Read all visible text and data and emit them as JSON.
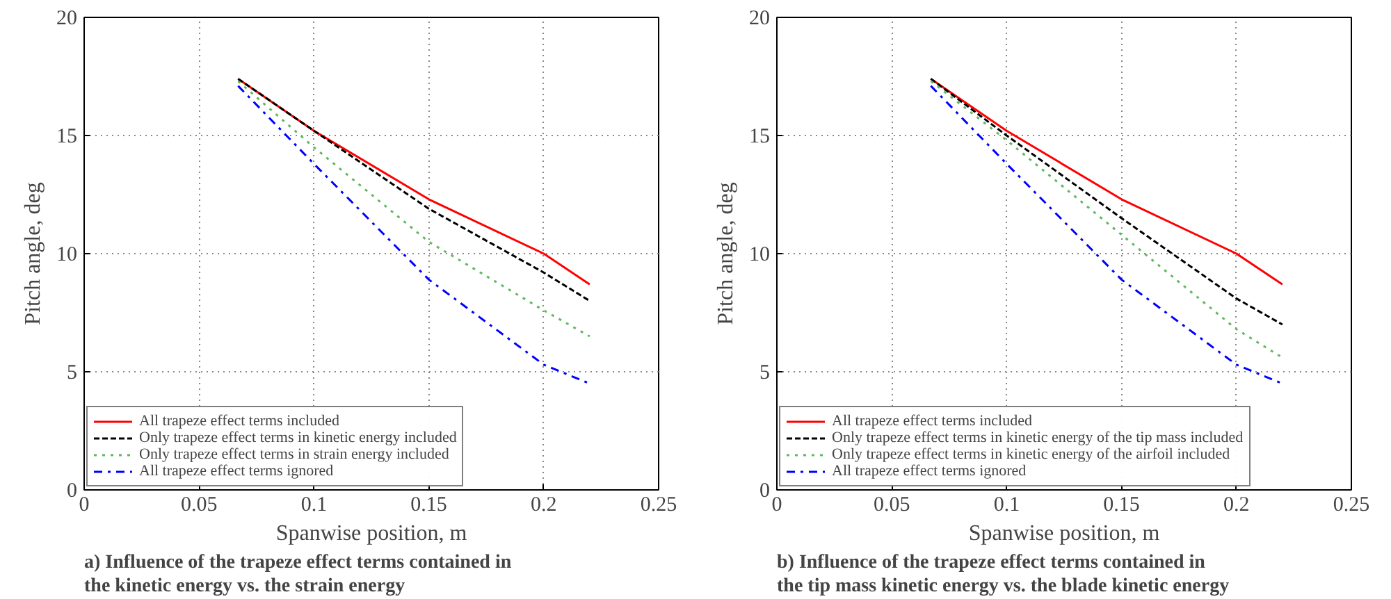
{
  "chart_data": [
    {
      "type": "line",
      "xlabel": "Spanwise position, m",
      "ylabel": "Pitch angle, deg",
      "xlim": [
        0,
        0.25
      ],
      "ylim": [
        0,
        20
      ],
      "xticks": [
        0,
        0.05,
        0.1,
        0.15,
        0.2,
        0.25
      ],
      "yticks": [
        0,
        5,
        10,
        15,
        20
      ],
      "grid": true,
      "legend": "bottom left",
      "x": [
        0.067,
        0.1,
        0.15,
        0.2,
        0.22
      ],
      "series": [
        {
          "name": "All trapeze effect terms included",
          "color": "#ff0000",
          "line_style": "solid",
          "values": [
            17.4,
            15.2,
            12.3,
            10.0,
            8.7
          ]
        },
        {
          "name": "Only trapeze effect terms in kinetic energy included",
          "color": "#000000",
          "line_style": "dashed",
          "values": [
            17.4,
            15.2,
            11.9,
            9.2,
            8.0
          ]
        },
        {
          "name": "Only trapeze effect terms in strain energy included",
          "color": "#5fb85f",
          "line_style": "dotted",
          "values": [
            17.3,
            14.5,
            10.5,
            7.6,
            6.5
          ]
        },
        {
          "name": "All trapeze effect terms ignored",
          "color": "#0000ff",
          "line_style": "dashdot",
          "values": [
            17.1,
            13.8,
            8.9,
            5.3,
            4.5
          ]
        }
      ],
      "annotations": [
        "a) Influence of the trapeze effect terms contained in the kinetic energy vs. the strain energy"
      ]
    },
    {
      "type": "line",
      "xlabel": "Spanwise position, m",
      "ylabel": "Pitch angle, deg",
      "xlim": [
        0,
        0.25
      ],
      "ylim": [
        0,
        20
      ],
      "xticks": [
        0,
        0.05,
        0.1,
        0.15,
        0.2,
        0.25
      ],
      "yticks": [
        0,
        5,
        10,
        15,
        20
      ],
      "grid": true,
      "legend": "bottom left",
      "x": [
        0.067,
        0.1,
        0.15,
        0.2,
        0.22
      ],
      "series": [
        {
          "name": "All trapeze effect terms included",
          "color": "#ff0000",
          "line_style": "solid",
          "values": [
            17.4,
            15.2,
            12.3,
            10.0,
            8.7
          ]
        },
        {
          "name": "Only trapeze effect terms in kinetic energy of the tip mass included",
          "color": "#000000",
          "line_style": "dashed",
          "values": [
            17.4,
            15.0,
            11.5,
            8.1,
            7.0
          ]
        },
        {
          "name": "Only trapeze effect terms in kinetic energy of the airfoil included",
          "color": "#5fb85f",
          "line_style": "dotted",
          "values": [
            17.3,
            14.8,
            10.8,
            6.8,
            5.6
          ]
        },
        {
          "name": "All trapeze effect terms ignored",
          "color": "#0000ff",
          "line_style": "dashdot",
          "values": [
            17.1,
            13.8,
            8.9,
            5.3,
            4.5
          ]
        }
      ],
      "annotations": [
        "b) Influence of the trapeze effect terms contained in the tip mass kinetic energy vs. the blade kinetic energy"
      ]
    }
  ]
}
